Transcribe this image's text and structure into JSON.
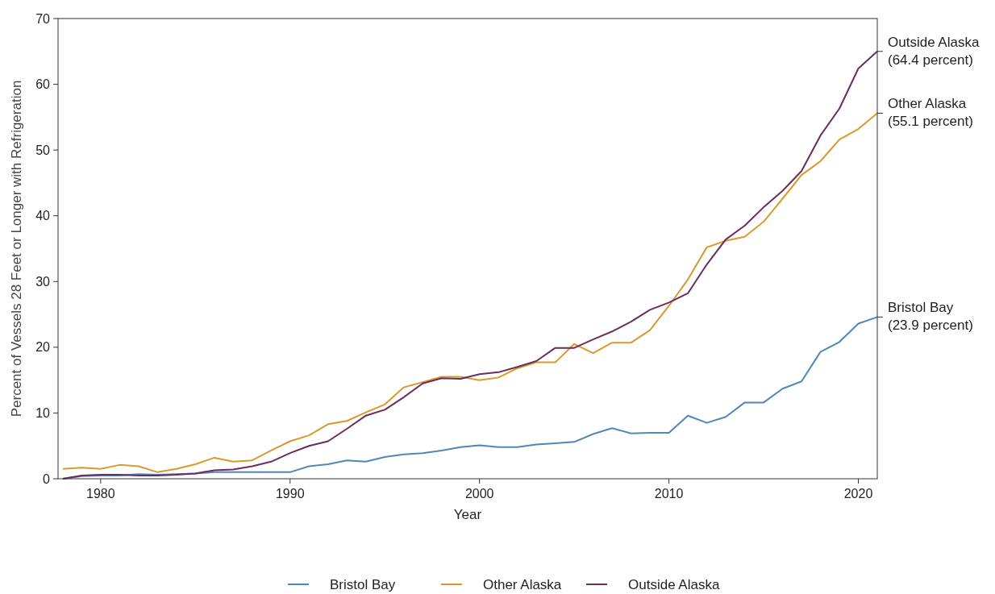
{
  "chart_data": {
    "type": "line",
    "xlabel": "Year",
    "ylabel": "Percent of Vessels 28 Feet or Longer with Refrigeration",
    "x": [
      1978,
      1979,
      1980,
      1981,
      1982,
      1983,
      1984,
      1985,
      1986,
      1987,
      1988,
      1989,
      1990,
      1991,
      1992,
      1993,
      1994,
      1995,
      1996,
      1997,
      1998,
      1999,
      2000,
      2001,
      2002,
      2003,
      2004,
      2005,
      2006,
      2007,
      2008,
      2009,
      2010,
      2011,
      2012,
      2013,
      2014,
      2015,
      2016,
      2017,
      2018,
      2019,
      2020,
      2021
    ],
    "series": [
      {
        "name": "Bristol Bay",
        "color": "#4f87b8",
        "values": [
          0,
          0.4,
          0.5,
          0.5,
          0.7,
          0.6,
          0.7,
          0.8,
          1.0,
          1.0,
          1.0,
          1.0,
          1.0,
          1.9,
          2.2,
          2.8,
          2.6,
          3.3,
          3.7,
          3.9,
          4.3,
          4.8,
          5.1,
          4.8,
          4.8,
          5.2,
          5.4,
          5.6,
          6.8,
          7.7,
          6.9,
          7.0,
          7.0,
          9.6,
          8.5,
          9.4,
          11.6,
          11.6,
          13.7,
          14.8,
          19.3,
          20.8,
          23.6,
          24.6
        ]
      },
      {
        "name": "Other Alaska",
        "color": "#d99a2b",
        "values": [
          1.5,
          1.7,
          1.5,
          2.1,
          1.9,
          1.0,
          1.5,
          2.2,
          3.2,
          2.6,
          2.8,
          4.3,
          5.7,
          6.6,
          8.3,
          8.8,
          10.1,
          11.3,
          13.9,
          14.7,
          15.5,
          15.5,
          15.0,
          15.4,
          16.8,
          17.7,
          17.7,
          20.5,
          19.1,
          20.7,
          20.7,
          22.6,
          26.3,
          30.3,
          35.2,
          36.2,
          36.8,
          39.1,
          42.6,
          46.2,
          48.3,
          51.6,
          53.2,
          55.6
        ]
      },
      {
        "name": "Outside Alaska",
        "color": "#6b2c5e",
        "values": [
          0,
          0.5,
          0.6,
          0.6,
          0.5,
          0.5,
          0.6,
          0.8,
          1.3,
          1.4,
          1.9,
          2.6,
          3.9,
          5.0,
          5.7,
          7.6,
          9.6,
          10.5,
          12.4,
          14.5,
          15.3,
          15.2,
          15.9,
          16.2,
          17.0,
          17.9,
          19.9,
          19.9,
          21.2,
          22.4,
          23.9,
          25.7,
          26.8,
          28.2,
          32.6,
          36.4,
          38.5,
          41.3,
          43.8,
          46.8,
          52.2,
          56.3,
          62.4,
          65.0
        ]
      }
    ],
    "xlim": [
      1977.75,
      2021
    ],
    "xticks": [
      1980,
      1990,
      2000,
      2010,
      2020
    ],
    "ylim": [
      0,
      70
    ],
    "yticks": [
      0,
      10,
      20,
      30,
      40,
      50,
      60,
      70
    ],
    "annotations": [
      "Bristol Bay\n(23.9 percent)",
      "Other Alaska\n(55.1 percent)",
      "Outside Alaska\n(64.4 percent)"
    ],
    "legend": "bottom",
    "grid": false,
    "line_style": "solid",
    "marker": "none"
  }
}
